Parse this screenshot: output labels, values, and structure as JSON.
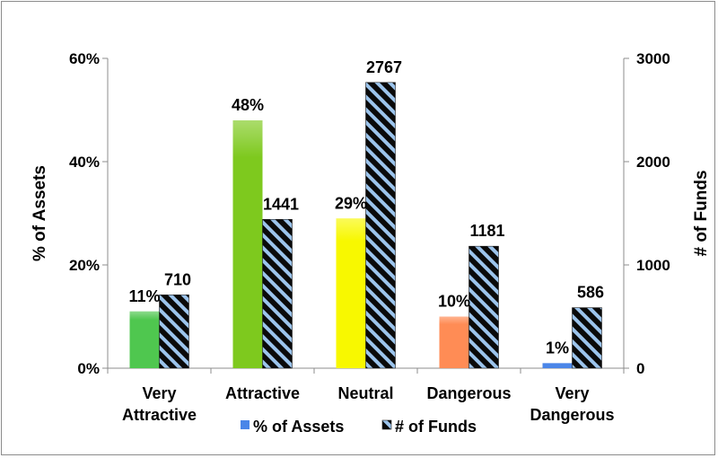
{
  "chart_data": {
    "type": "bar",
    "categories": [
      [
        "Very",
        "Attractive"
      ],
      [
        "Attractive"
      ],
      [
        "Neutral"
      ],
      [
        "Dangerous"
      ],
      [
        "Very",
        "Dangerous"
      ]
    ],
    "series": [
      {
        "name": "% of Assets",
        "axis": "left",
        "values": [
          11,
          48,
          29,
          10,
          1
        ],
        "labels": [
          "11%",
          "48%",
          "29%",
          "10%",
          "1%"
        ],
        "bar_colors": [
          "#4fc74f",
          "#7ec91e",
          "#f8f800",
          "#ff8c55",
          "#4a86e8"
        ]
      },
      {
        "name": "# of Funds",
        "axis": "right",
        "values": [
          710,
          1441,
          2767,
          1181,
          586
        ],
        "labels": [
          "710",
          "1441",
          "2767",
          "1181",
          "586"
        ],
        "pattern": "diagonal-stripes",
        "pattern_colors": [
          "#0a0a0a",
          "#9cc4ec"
        ]
      }
    ],
    "ylabel": "% of Assets",
    "y2label": "# of Funds",
    "ylim": [
      0,
      60
    ],
    "y2lim": [
      0,
      3000
    ],
    "yticks": [
      "0%",
      "20%",
      "40%",
      "60%"
    ],
    "y2ticks": [
      "0",
      "1000",
      "2000",
      "3000"
    ],
    "legend": "bottom-center",
    "grid": false
  }
}
